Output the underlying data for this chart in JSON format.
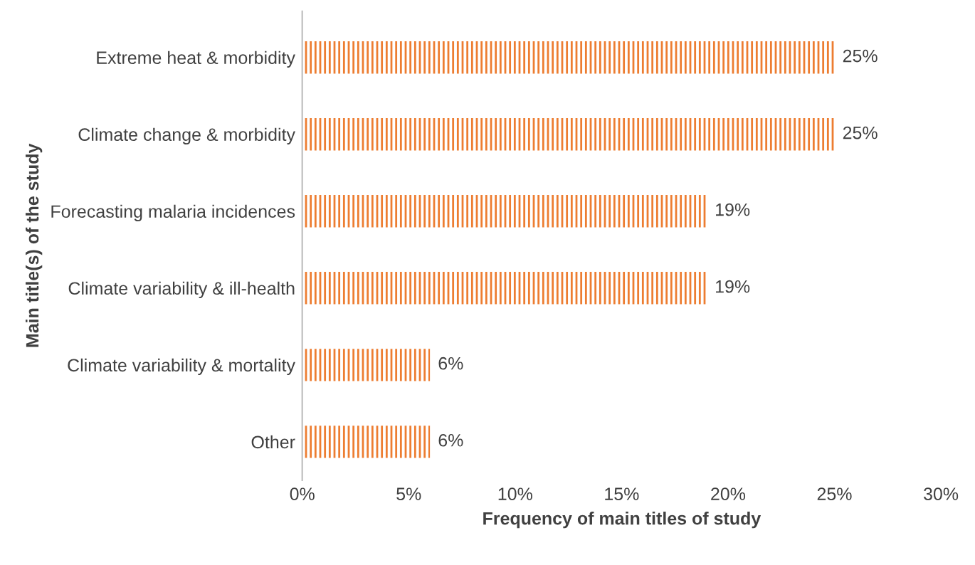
{
  "chart_data": {
    "type": "bar",
    "orientation": "horizontal",
    "xlabel": "Frequency of main titles of study",
    "ylabel": "Main title(s) of the study",
    "categories": [
      "Extreme heat & morbidity",
      "Climate change & morbidity",
      "Forecasting malaria incidences",
      "Climate variability & ill-health",
      "Climate variability & mortality",
      "Other"
    ],
    "values": [
      25,
      25,
      19,
      19,
      6,
      6
    ],
    "value_labels": [
      "25%",
      "25%",
      "19%",
      "19%",
      "6%",
      "6%"
    ],
    "color": "#ed7d31",
    "xlim": [
      0,
      30
    ],
    "xticks": [
      {
        "value": 0,
        "label": "0%"
      },
      {
        "value": 5,
        "label": "5%"
      },
      {
        "value": 10,
        "label": "10%"
      },
      {
        "value": 15,
        "label": "15%"
      },
      {
        "value": 20,
        "label": "20%"
      },
      {
        "value": 25,
        "label": "25%"
      },
      {
        "value": 30,
        "label": "30%"
      }
    ],
    "grid": false,
    "legend": false
  }
}
